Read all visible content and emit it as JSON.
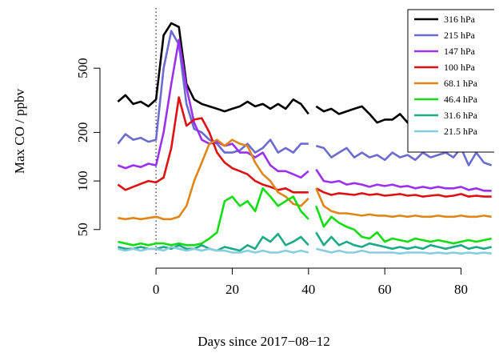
{
  "chart_data": {
    "type": "line",
    "xlabel": "Days since 2017−08−12",
    "ylabel": "Max CO / ppbv",
    "x": [
      -10,
      -8,
      -6,
      -4,
      -2,
      0,
      2,
      4,
      6,
      8,
      10,
      12,
      14,
      16,
      18,
      20,
      22,
      24,
      26,
      28,
      30,
      32,
      34,
      36,
      38,
      40,
      41,
      42,
      44,
      46,
      48,
      50,
      52,
      54,
      56,
      58,
      60,
      62,
      64,
      66,
      68,
      70,
      72,
      74,
      76,
      78,
      80,
      82,
      84,
      86,
      88
    ],
    "xlim": [
      -14.7,
      88.7
    ],
    "xticks": [
      0,
      20,
      40,
      60,
      80
    ],
    "ylim": [
      35,
      1180
    ],
    "yticks": [
      50,
      100,
      200,
      500
    ],
    "log_y": true,
    "vline": 0,
    "legend": "topright",
    "series": [
      {
        "name": "316 hPa",
        "color": "#000000",
        "values": [
          310,
          340,
          300,
          310,
          290,
          320,
          800,
          950,
          900,
          400,
          320,
          300,
          290,
          280,
          270,
          280,
          290,
          310,
          290,
          300,
          280,
          300,
          280,
          320,
          300,
          260,
          null,
          290,
          270,
          280,
          260,
          270,
          280,
          290,
          260,
          230,
          240,
          240,
          260,
          230,
          250,
          240,
          230,
          220,
          230,
          240,
          220,
          230,
          220,
          230,
          230
        ]
      },
      {
        "name": "215 hPa",
        "color": "#6b6bd0",
        "values": [
          170,
          195,
          180,
          185,
          175,
          180,
          500,
          850,
          700,
          300,
          210,
          200,
          180,
          170,
          150,
          150,
          155,
          170,
          150,
          160,
          180,
          150,
          160,
          150,
          170,
          170,
          null,
          165,
          160,
          140,
          150,
          160,
          140,
          150,
          140,
          145,
          135,
          150,
          140,
          145,
          135,
          150,
          140,
          145,
          150,
          140,
          160,
          125,
          150,
          130,
          125
        ]
      },
      {
        "name": "147 hPa",
        "color": "#9b30f0",
        "values": [
          125,
          120,
          125,
          122,
          128,
          125,
          200,
          400,
          750,
          380,
          230,
          180,
          170,
          175,
          165,
          170,
          150,
          150,
          140,
          150,
          125,
          115,
          115,
          110,
          105,
          115,
          null,
          118,
          100,
          98,
          100,
          95,
          97,
          95,
          92,
          95,
          93,
          95,
          92,
          93,
          90,
          92,
          90,
          92,
          90,
          90,
          92,
          88,
          90,
          87,
          87
        ]
      },
      {
        "name": "100 hPa",
        "color": "#dd1111",
        "values": [
          95,
          88,
          92,
          96,
          100,
          98,
          105,
          160,
          330,
          220,
          240,
          245,
          200,
          150,
          130,
          120,
          115,
          110,
          100,
          95,
          92,
          88,
          90,
          85,
          85,
          85,
          null,
          90,
          85,
          82,
          84,
          83,
          82,
          84,
          82,
          83,
          81,
          82,
          83,
          81,
          82,
          80,
          81,
          82,
          80,
          81,
          83,
          80,
          81,
          80,
          80
        ]
      },
      {
        "name": "68.1 hPa",
        "color": "#e08518",
        "values": [
          59,
          58,
          59,
          58,
          59,
          60,
          58,
          58,
          60,
          70,
          100,
          130,
          170,
          180,
          165,
          180,
          170,
          165,
          130,
          110,
          100,
          85,
          80,
          72,
          70,
          78,
          null,
          90,
          70,
          65,
          63,
          63,
          62,
          61,
          62,
          61,
          61,
          60,
          61,
          60,
          61,
          60,
          60,
          61,
          60,
          60,
          61,
          60,
          60,
          61,
          60
        ]
      },
      {
        "name": "46.4 hPa",
        "color": "#11dd11",
        "values": [
          42,
          41,
          40,
          41,
          40,
          41,
          41,
          40,
          41,
          40,
          40,
          41,
          44,
          48,
          75,
          80,
          70,
          75,
          65,
          90,
          80,
          70,
          75,
          80,
          65,
          58,
          null,
          70,
          52,
          60,
          55,
          52,
          50,
          45,
          44,
          48,
          42,
          44,
          43,
          42,
          44,
          43,
          42,
          43,
          42,
          41,
          42,
          43,
          42,
          43,
          44
        ]
      },
      {
        "name": "31.6 hPa",
        "color": "#1aaa88",
        "values": [
          39,
          38,
          38,
          39,
          38,
          38,
          39,
          38,
          40,
          38,
          38,
          40,
          38,
          37,
          39,
          38,
          37,
          40,
          38,
          45,
          42,
          47,
          40,
          42,
          45,
          40,
          null,
          48,
          40,
          45,
          40,
          42,
          40,
          39,
          41,
          40,
          39,
          38,
          39,
          38,
          39,
          38,
          40,
          39,
          38,
          39,
          40,
          38,
          39,
          38,
          39
        ]
      },
      {
        "name": "21.5 hPa",
        "color": "#88cce0",
        "values": [
          38,
          37,
          38,
          37,
          38,
          38,
          37,
          39,
          38,
          37,
          38,
          37,
          38,
          37,
          37,
          36,
          36,
          37,
          36,
          37,
          36,
          36,
          37,
          36,
          37,
          36,
          null,
          38,
          37,
          36,
          37,
          36,
          36,
          37,
          36,
          36,
          36,
          36,
          35.5,
          36,
          36,
          36,
          35.5,
          36,
          35.5,
          36,
          35.5,
          36,
          35.5,
          36,
          35.5
        ]
      }
    ]
  }
}
